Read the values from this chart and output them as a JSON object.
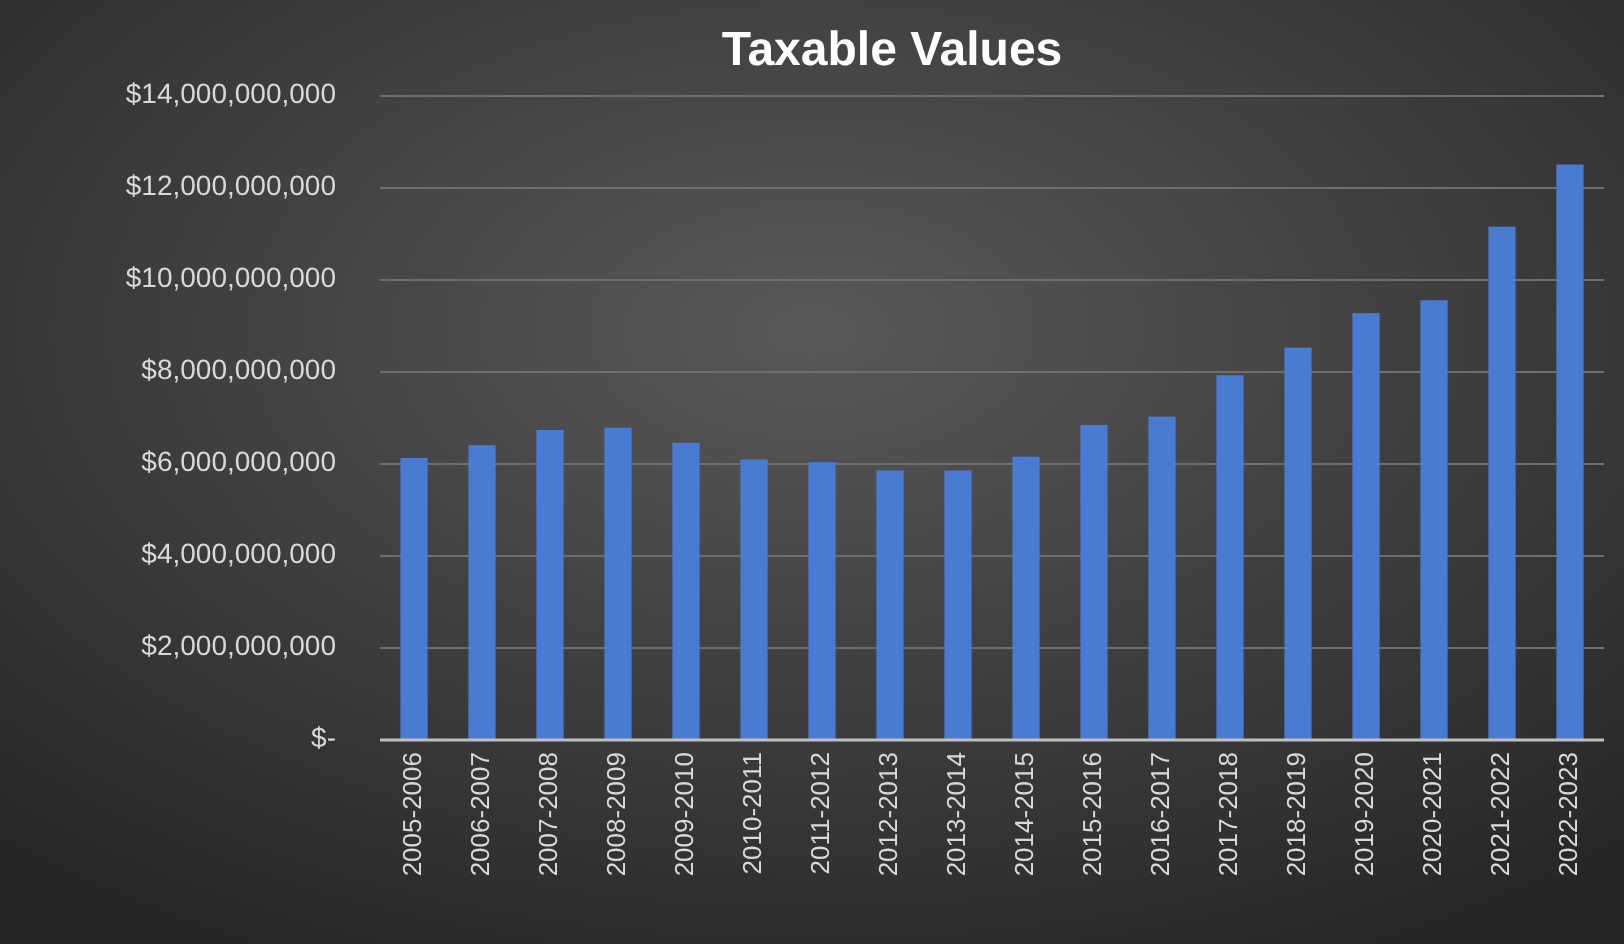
{
  "chart_data": {
    "type": "bar",
    "title": "Taxable Values",
    "categories": [
      "2005-2006",
      "2006-2007",
      "2007-2008",
      "2008-2009",
      "2009-2010",
      "2010-2011",
      "2011-2012",
      "2012-2013",
      "2013-2014",
      "2014-2015",
      "2015-2016",
      "2016-2017",
      "2017-2018",
      "2018-2019",
      "2019-2020",
      "2020-2021",
      "2021-2022",
      "2022-2023"
    ],
    "values": [
      6130000000,
      6410000000,
      6740000000,
      6790000000,
      6460000000,
      6100000000,
      6040000000,
      5860000000,
      5860000000,
      6160000000,
      6850000000,
      7030000000,
      7930000000,
      8530000000,
      9280000000,
      9560000000,
      11160000000,
      12510000000
    ],
    "color": "#4a7bd3",
    "ylim": [
      0,
      14000000000
    ],
    "yticks": [
      {
        "value": 0,
        "label": "$-"
      },
      {
        "value": 2000000000,
        "label": "$2,000,000,000"
      },
      {
        "value": 4000000000,
        "label": "$4,000,000,000"
      },
      {
        "value": 6000000000,
        "label": "$6,000,000,000"
      },
      {
        "value": 8000000000,
        "label": "$8,000,000,000"
      },
      {
        "value": 10000000000,
        "label": "$10,000,000,000"
      },
      {
        "value": 12000000000,
        "label": "$12,000,000,000"
      },
      {
        "value": 14000000000,
        "label": "$14,000,000,000"
      }
    ],
    "grid": "y"
  }
}
